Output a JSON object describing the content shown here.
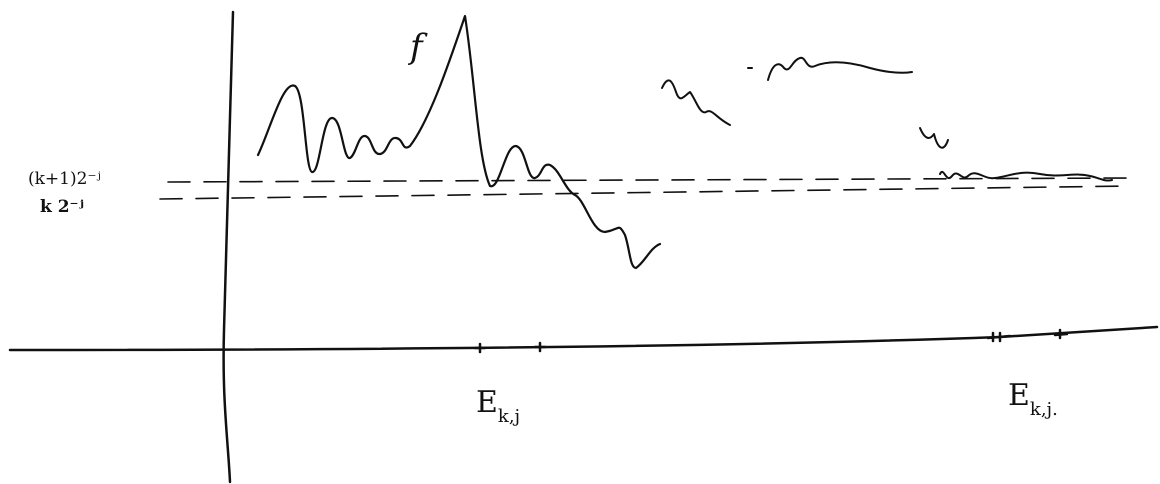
{
  "labels": {
    "function": "f",
    "upper_level": "(k+1)2⁻ʲ",
    "lower_level": "k 2⁻ʲ",
    "set_left": "E",
    "set_left_sub": "k,j",
    "set_right": "E",
    "set_right_sub": "k,j."
  }
}
